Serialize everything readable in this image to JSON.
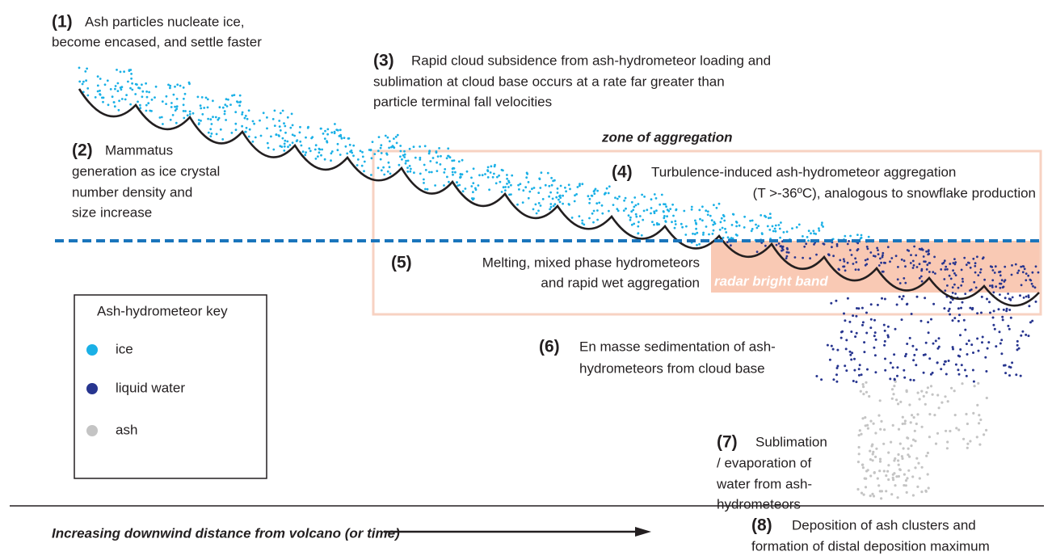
{
  "steps": [
    {
      "number": "(1)",
      "lines": [
        "Ash particles nucleate ice,",
        "become encased, and settle faster"
      ]
    },
    {
      "number": "(2)",
      "lines": [
        "Mammatus",
        "generation as ice crystal",
        "number density and",
        "size increase"
      ]
    },
    {
      "number": "(3)",
      "lines": [
        "Rapid cloud subsidence from ash-hydrometeor loading and",
        "sublimation at cloud base occurs at a rate far greater than",
        "particle terminal fall velocities"
      ]
    },
    {
      "number": "(4)",
      "lines": [
        "Turbulence-induced ash-hydrometeor aggregation",
        "(T >-36ºC), analogous to snowflake production"
      ]
    },
    {
      "number": "(5)",
      "lines": [
        "Melting, mixed phase hydrometeors",
        "and rapid wet aggregation"
      ]
    },
    {
      "number": "(6)",
      "lines": [
        "En masse sedimentation of ash-",
        "hydrometeors from cloud base"
      ]
    },
    {
      "number": "(7)",
      "lines": [
        "Sublimation",
        "/ evaporation of",
        "water from ash-",
        "hydrometeors"
      ]
    },
    {
      "number": "(8)",
      "lines": [
        "Deposition of ash clusters and",
        "formation of distal deposition maximum"
      ]
    }
  ],
  "zone_label": "zone of aggregation",
  "band_label": "radar bright band",
  "key": {
    "title": "Ash-hydrometeor key",
    "items": [
      {
        "label": "ice",
        "color": "#1ab0e6"
      },
      {
        "label": "liquid water",
        "color": "#27358f"
      },
      {
        "label": "ash",
        "color": "#c4c4c4"
      }
    ]
  },
  "axis_label": "Increasing downwind distance from volcano (or time)"
}
